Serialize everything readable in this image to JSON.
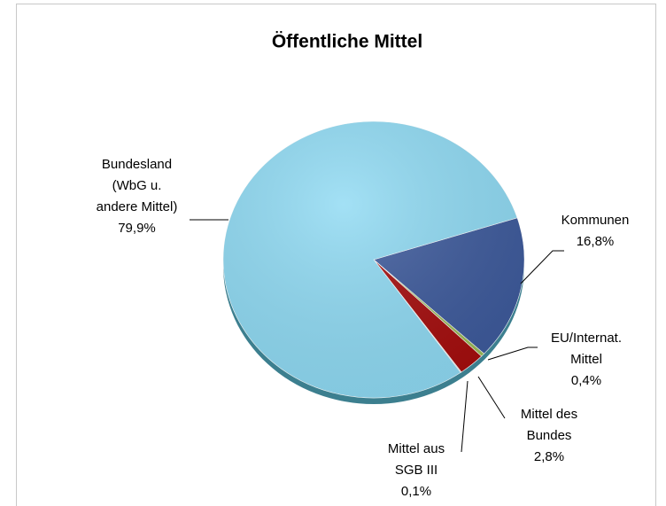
{
  "chart_data": {
    "type": "pie",
    "title": "Öffentliche Mittel",
    "categories": [
      "Kommunen",
      "EU/Internat. Mittel",
      "Mittel des Bundes",
      "Mittel aus SGB III",
      "Bundesland (WbG u. andere Mittel)"
    ],
    "values": [
      16.8,
      0.4,
      2.8,
      0.1,
      79.9
    ],
    "value_labels": [
      "16,8%",
      "0,4%",
      "2,8%",
      "0,1%",
      "79,9%"
    ],
    "colors": [
      "#3d5a9c",
      "#9bbb59",
      "#a50d0d",
      "#d9d9d9",
      "#8fdaf3"
    ]
  }
}
